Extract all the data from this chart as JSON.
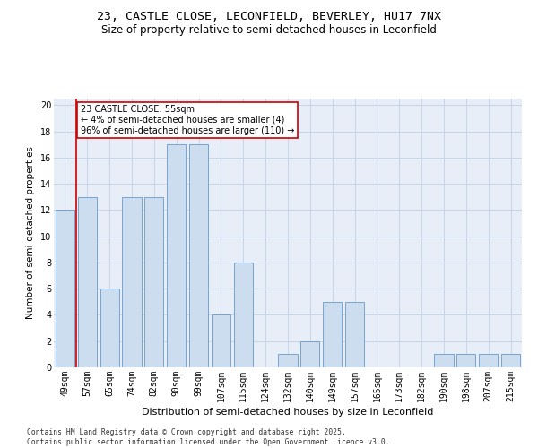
{
  "title_line1": "23, CASTLE CLOSE, LECONFIELD, BEVERLEY, HU17 7NX",
  "title_line2": "Size of property relative to semi-detached houses in Leconfield",
  "xlabel": "Distribution of semi-detached houses by size in Leconfield",
  "ylabel": "Number of semi-detached properties",
  "categories": [
    "49sqm",
    "57sqm",
    "65sqm",
    "74sqm",
    "82sqm",
    "90sqm",
    "99sqm",
    "107sqm",
    "115sqm",
    "124sqm",
    "132sqm",
    "140sqm",
    "149sqm",
    "157sqm",
    "165sqm",
    "173sqm",
    "182sqm",
    "190sqm",
    "198sqm",
    "207sqm",
    "215sqm"
  ],
  "values": [
    12,
    13,
    6,
    13,
    13,
    17,
    17,
    4,
    8,
    0,
    1,
    2,
    5,
    5,
    0,
    0,
    0,
    1,
    1,
    1,
    1
  ],
  "bar_color": "#ccddf0",
  "bar_edge_color": "#6699cc",
  "red_line_color": "#cc0000",
  "red_line_x": 0.5,
  "annotation_text": "23 CASTLE CLOSE: 55sqm\n← 4% of semi-detached houses are smaller (4)\n96% of semi-detached houses are larger (110) →",
  "annotation_box_facecolor": "#ffffff",
  "annotation_box_edgecolor": "#cc0000",
  "ylim": [
    0,
    20.5
  ],
  "yticks": [
    0,
    2,
    4,
    6,
    8,
    10,
    12,
    14,
    16,
    18,
    20
  ],
  "grid_color": "#c8d4e8",
  "background_color": "#e8eef8",
  "footer": "Contains HM Land Registry data © Crown copyright and database right 2025.\nContains public sector information licensed under the Open Government Licence v3.0.",
  "title_fontsize": 9.5,
  "subtitle_fontsize": 8.5,
  "tick_fontsize": 7,
  "ylabel_fontsize": 7.5,
  "xlabel_fontsize": 8,
  "footer_fontsize": 5.8,
  "annotation_fontsize": 7
}
